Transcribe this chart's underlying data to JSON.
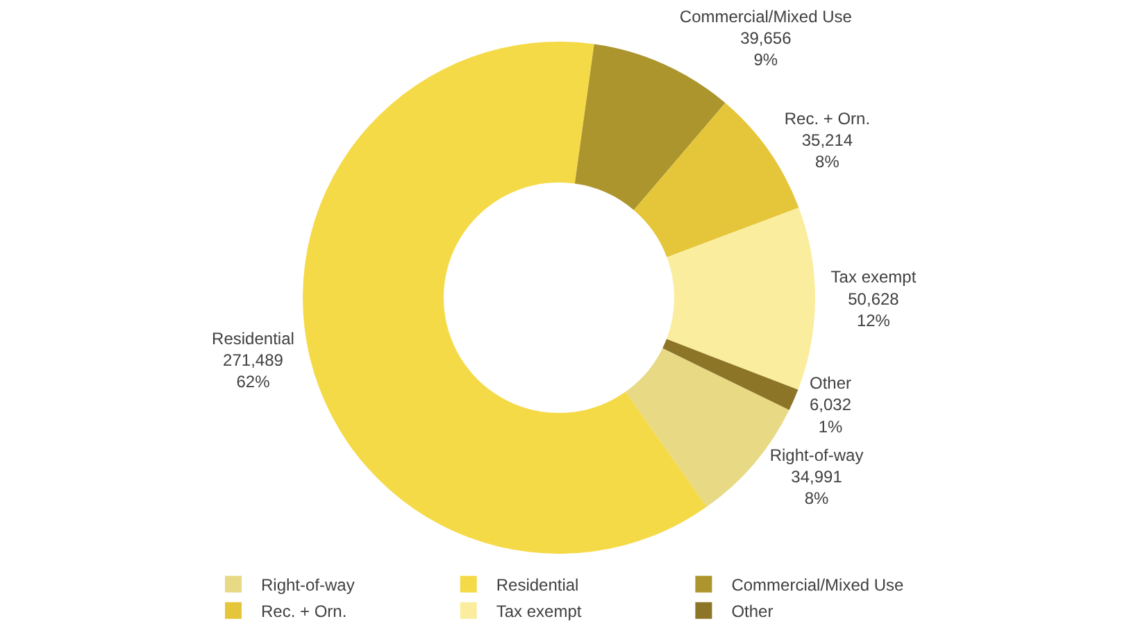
{
  "chart_data": {
    "type": "donut",
    "categories": [
      "Right-of-way",
      "Residential",
      "Commercial/Mixed Use",
      "Rec. + Orn.",
      "Tax exempt",
      "Other"
    ],
    "values": [
      34991,
      271489,
      39656,
      35214,
      50628,
      6032
    ],
    "value_labels": [
      "34,991\n8%",
      "271,489\n62%",
      "39,656\n9%",
      "35,214\n8%",
      "50,628\n12%",
      "6,032\n1%"
    ],
    "colors": [
      "#e8d985",
      "#f5da48",
      "#ad952e",
      "#e5c63a",
      "#fbed9e",
      "#8c7526"
    ],
    "legend": "bottom"
  }
}
